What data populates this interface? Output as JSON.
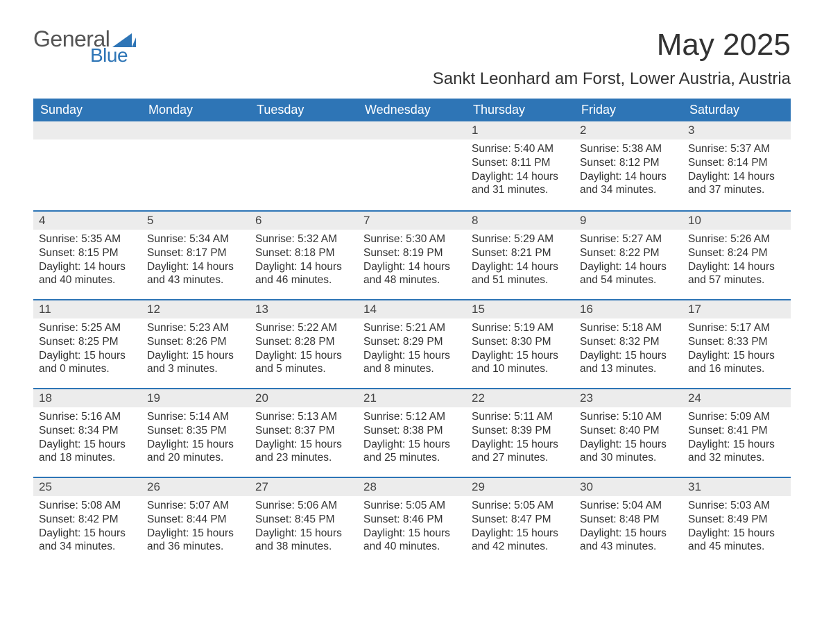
{
  "logo": {
    "text_general": "General",
    "text_blue": "Blue",
    "color_general": "#555555",
    "color_blue": "#2e75b6",
    "mark_color": "#2e75b6"
  },
  "title": "May 2025",
  "location": "Sankt Leonhard am Forst, Lower Austria, Austria",
  "day_headers": [
    "Sunday",
    "Monday",
    "Tuesday",
    "Wednesday",
    "Thursday",
    "Friday",
    "Saturday"
  ],
  "colors": {
    "header_bg": "#2e75b6",
    "header_text": "#ffffff",
    "week_divider": "#2e75b6",
    "daynum_bg": "#ececec",
    "body_text": "#333333",
    "page_bg": "#ffffff"
  },
  "typography": {
    "title_fontsize": 44,
    "location_fontsize": 24,
    "header_fontsize": 18,
    "daynum_fontsize": 17,
    "cell_fontsize": 15.5,
    "font_family": "Arial"
  },
  "weeks": [
    [
      {
        "day": "",
        "sunrise": "",
        "sunset": "",
        "daylight": ""
      },
      {
        "day": "",
        "sunrise": "",
        "sunset": "",
        "daylight": ""
      },
      {
        "day": "",
        "sunrise": "",
        "sunset": "",
        "daylight": ""
      },
      {
        "day": "",
        "sunrise": "",
        "sunset": "",
        "daylight": ""
      },
      {
        "day": "1",
        "sunrise": "Sunrise: 5:40 AM",
        "sunset": "Sunset: 8:11 PM",
        "daylight": "Daylight: 14 hours and 31 minutes."
      },
      {
        "day": "2",
        "sunrise": "Sunrise: 5:38 AM",
        "sunset": "Sunset: 8:12 PM",
        "daylight": "Daylight: 14 hours and 34 minutes."
      },
      {
        "day": "3",
        "sunrise": "Sunrise: 5:37 AM",
        "sunset": "Sunset: 8:14 PM",
        "daylight": "Daylight: 14 hours and 37 minutes."
      }
    ],
    [
      {
        "day": "4",
        "sunrise": "Sunrise: 5:35 AM",
        "sunset": "Sunset: 8:15 PM",
        "daylight": "Daylight: 14 hours and 40 minutes."
      },
      {
        "day": "5",
        "sunrise": "Sunrise: 5:34 AM",
        "sunset": "Sunset: 8:17 PM",
        "daylight": "Daylight: 14 hours and 43 minutes."
      },
      {
        "day": "6",
        "sunrise": "Sunrise: 5:32 AM",
        "sunset": "Sunset: 8:18 PM",
        "daylight": "Daylight: 14 hours and 46 minutes."
      },
      {
        "day": "7",
        "sunrise": "Sunrise: 5:30 AM",
        "sunset": "Sunset: 8:19 PM",
        "daylight": "Daylight: 14 hours and 48 minutes."
      },
      {
        "day": "8",
        "sunrise": "Sunrise: 5:29 AM",
        "sunset": "Sunset: 8:21 PM",
        "daylight": "Daylight: 14 hours and 51 minutes."
      },
      {
        "day": "9",
        "sunrise": "Sunrise: 5:27 AM",
        "sunset": "Sunset: 8:22 PM",
        "daylight": "Daylight: 14 hours and 54 minutes."
      },
      {
        "day": "10",
        "sunrise": "Sunrise: 5:26 AM",
        "sunset": "Sunset: 8:24 PM",
        "daylight": "Daylight: 14 hours and 57 minutes."
      }
    ],
    [
      {
        "day": "11",
        "sunrise": "Sunrise: 5:25 AM",
        "sunset": "Sunset: 8:25 PM",
        "daylight": "Daylight: 15 hours and 0 minutes."
      },
      {
        "day": "12",
        "sunrise": "Sunrise: 5:23 AM",
        "sunset": "Sunset: 8:26 PM",
        "daylight": "Daylight: 15 hours and 3 minutes."
      },
      {
        "day": "13",
        "sunrise": "Sunrise: 5:22 AM",
        "sunset": "Sunset: 8:28 PM",
        "daylight": "Daylight: 15 hours and 5 minutes."
      },
      {
        "day": "14",
        "sunrise": "Sunrise: 5:21 AM",
        "sunset": "Sunset: 8:29 PM",
        "daylight": "Daylight: 15 hours and 8 minutes."
      },
      {
        "day": "15",
        "sunrise": "Sunrise: 5:19 AM",
        "sunset": "Sunset: 8:30 PM",
        "daylight": "Daylight: 15 hours and 10 minutes."
      },
      {
        "day": "16",
        "sunrise": "Sunrise: 5:18 AM",
        "sunset": "Sunset: 8:32 PM",
        "daylight": "Daylight: 15 hours and 13 minutes."
      },
      {
        "day": "17",
        "sunrise": "Sunrise: 5:17 AM",
        "sunset": "Sunset: 8:33 PM",
        "daylight": "Daylight: 15 hours and 16 minutes."
      }
    ],
    [
      {
        "day": "18",
        "sunrise": "Sunrise: 5:16 AM",
        "sunset": "Sunset: 8:34 PM",
        "daylight": "Daylight: 15 hours and 18 minutes."
      },
      {
        "day": "19",
        "sunrise": "Sunrise: 5:14 AM",
        "sunset": "Sunset: 8:35 PM",
        "daylight": "Daylight: 15 hours and 20 minutes."
      },
      {
        "day": "20",
        "sunrise": "Sunrise: 5:13 AM",
        "sunset": "Sunset: 8:37 PM",
        "daylight": "Daylight: 15 hours and 23 minutes."
      },
      {
        "day": "21",
        "sunrise": "Sunrise: 5:12 AM",
        "sunset": "Sunset: 8:38 PM",
        "daylight": "Daylight: 15 hours and 25 minutes."
      },
      {
        "day": "22",
        "sunrise": "Sunrise: 5:11 AM",
        "sunset": "Sunset: 8:39 PM",
        "daylight": "Daylight: 15 hours and 27 minutes."
      },
      {
        "day": "23",
        "sunrise": "Sunrise: 5:10 AM",
        "sunset": "Sunset: 8:40 PM",
        "daylight": "Daylight: 15 hours and 30 minutes."
      },
      {
        "day": "24",
        "sunrise": "Sunrise: 5:09 AM",
        "sunset": "Sunset: 8:41 PM",
        "daylight": "Daylight: 15 hours and 32 minutes."
      }
    ],
    [
      {
        "day": "25",
        "sunrise": "Sunrise: 5:08 AM",
        "sunset": "Sunset: 8:42 PM",
        "daylight": "Daylight: 15 hours and 34 minutes."
      },
      {
        "day": "26",
        "sunrise": "Sunrise: 5:07 AM",
        "sunset": "Sunset: 8:44 PM",
        "daylight": "Daylight: 15 hours and 36 minutes."
      },
      {
        "day": "27",
        "sunrise": "Sunrise: 5:06 AM",
        "sunset": "Sunset: 8:45 PM",
        "daylight": "Daylight: 15 hours and 38 minutes."
      },
      {
        "day": "28",
        "sunrise": "Sunrise: 5:05 AM",
        "sunset": "Sunset: 8:46 PM",
        "daylight": "Daylight: 15 hours and 40 minutes."
      },
      {
        "day": "29",
        "sunrise": "Sunrise: 5:05 AM",
        "sunset": "Sunset: 8:47 PM",
        "daylight": "Daylight: 15 hours and 42 minutes."
      },
      {
        "day": "30",
        "sunrise": "Sunrise: 5:04 AM",
        "sunset": "Sunset: 8:48 PM",
        "daylight": "Daylight: 15 hours and 43 minutes."
      },
      {
        "day": "31",
        "sunrise": "Sunrise: 5:03 AM",
        "sunset": "Sunset: 8:49 PM",
        "daylight": "Daylight: 15 hours and 45 minutes."
      }
    ]
  ]
}
